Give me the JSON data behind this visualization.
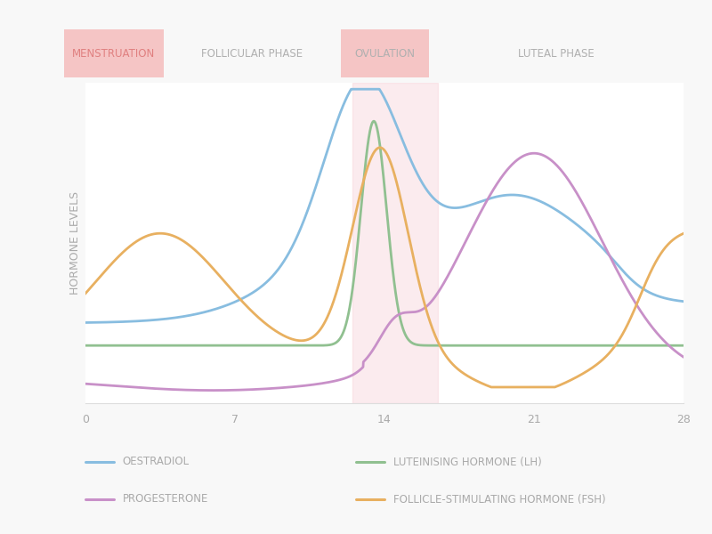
{
  "background_color": "#f8f8f8",
  "plot_bg_color": "#ffffff",
  "xlim": [
    0,
    28
  ],
  "ylim": [
    0,
    10
  ],
  "xticks": [
    0,
    7,
    14,
    21,
    28
  ],
  "ylabel": "HORMONE LEVELS",
  "phases": {
    "menstruation": {
      "label": "MENSTRUATION",
      "x_start": 0,
      "x_end": 4.5,
      "color": "#f5c5c5",
      "text_color": "#e08080"
    },
    "follicular": {
      "label": "FOLLICULAR PHASE",
      "x_start": 4.5,
      "x_end": 12.5,
      "color": null,
      "text_color": "#b0b0b0"
    },
    "ovulation": {
      "label": "OVULATION",
      "x_start": 12.5,
      "x_end": 16.5,
      "color": "#f5c5c5",
      "text_color": "#b0b0b0"
    },
    "luteal": {
      "label": "LUTEAL PHASE",
      "x_start": 16.5,
      "x_end": 28,
      "color": null,
      "text_color": "#b0b0b0"
    }
  },
  "header_bg_color": "#f0f0f0",
  "ovulation_shade": {
    "x_start": 12.5,
    "x_end": 16.5,
    "color": "#f5c8d0",
    "alpha": 0.35
  },
  "colors": {
    "oestradiol": "#88bde0",
    "lh": "#90c090",
    "progesterone": "#c890c8",
    "fsh": "#e8b060"
  },
  "legend": {
    "oestradiol_label": "OESTRADIOL",
    "lh_label": "LUTEINISING HORMONE (LH)",
    "progesterone_label": "PROGESTERONE",
    "fsh_label": "FOLLICLE-STIMULATING HORMONE (FSH)"
  },
  "line_width": 2.0,
  "font_color": "#aaaaaa",
  "title_font_size": 8.5,
  "axis_font_size": 9,
  "legend_font_size": 8.5
}
